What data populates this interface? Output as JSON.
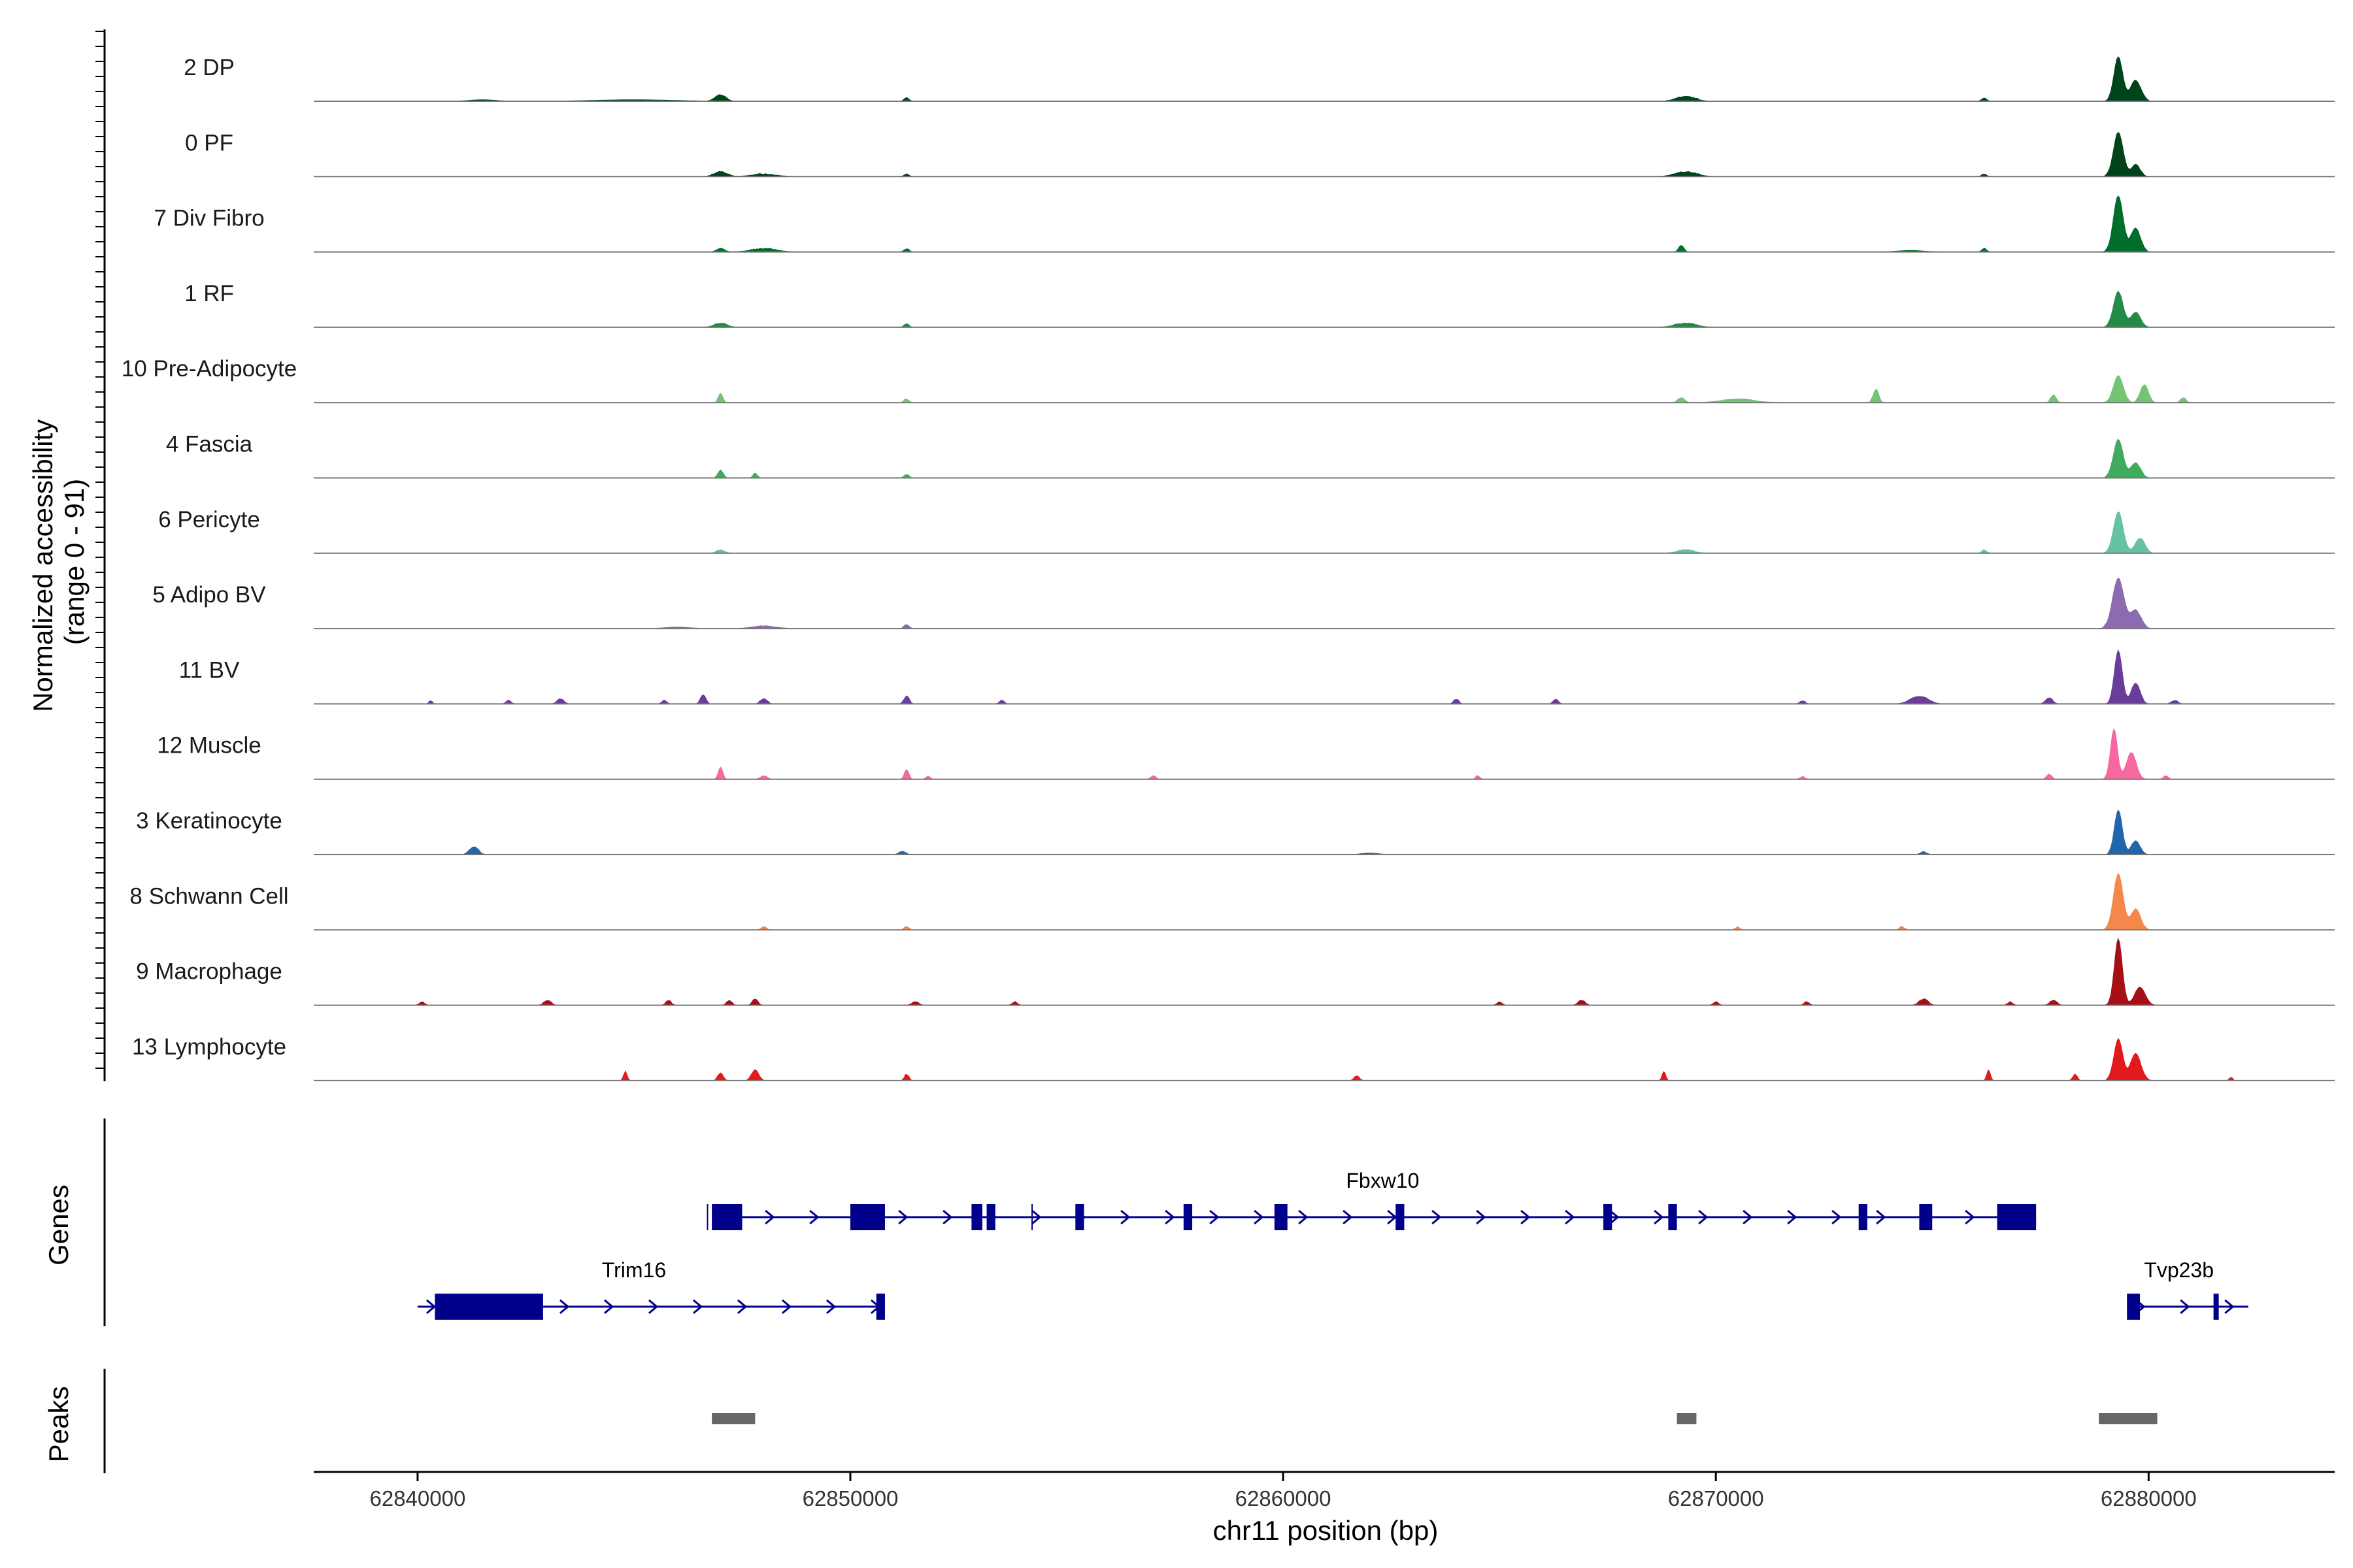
{
  "chart_data": {
    "type": "area",
    "chromosome": "chr11",
    "xlabel": "chr11 position (bp)",
    "ylabel_line1": "Normalized accessibility",
    "ylabel_line2": "(range 0 - 91)",
    "y_range": [
      0,
      91
    ],
    "xlim": [
      62837600,
      62884300
    ],
    "x_ticks": [
      "62840000",
      "62850000",
      "62860000",
      "62870000",
      "62880000"
    ],
    "x_tick_values": [
      62840000,
      62850000,
      62860000,
      62870000,
      62880000
    ],
    "tracks": [
      {
        "name": "2 DP",
        "color": "#00441b",
        "baseline": 1,
        "peaks": [
          [
            62879300,
            30,
            100
          ],
          [
            62879700,
            14,
            120
          ],
          [
            62847000,
            4,
            120
          ],
          [
            62851300,
            2,
            60
          ],
          [
            62869300,
            3,
            220
          ],
          [
            62845000,
            1,
            900
          ],
          [
            62876200,
            2,
            60
          ],
          [
            62841500,
            1,
            300
          ]
        ]
      },
      {
        "name": "0 PF",
        "color": "#00441b",
        "baseline": 1,
        "peaks": [
          [
            62879300,
            30,
            110
          ],
          [
            62879700,
            8,
            100
          ],
          [
            62847000,
            3,
            150
          ],
          [
            62848000,
            1.5,
            300
          ],
          [
            62869300,
            3,
            250
          ],
          [
            62851300,
            1.5,
            60
          ],
          [
            62876200,
            1.5,
            60
          ]
        ]
      },
      {
        "name": "7 Div Fibro",
        "color": "#006d2c",
        "baseline": 1,
        "peaks": [
          [
            62879300,
            38,
            110
          ],
          [
            62879700,
            16,
            110
          ],
          [
            62847000,
            2,
            100
          ],
          [
            62848000,
            2,
            300
          ],
          [
            62869200,
            4,
            60
          ],
          [
            62851300,
            2,
            60
          ],
          [
            62876200,
            2,
            60
          ],
          [
            62874500,
            1,
            300
          ]
        ]
      },
      {
        "name": "1 RF",
        "color": "#238b45",
        "baseline": 1,
        "peaks": [
          [
            62879300,
            24,
            110
          ],
          [
            62879700,
            10,
            110
          ],
          [
            62847000,
            2.5,
            150
          ],
          [
            62869300,
            2.5,
            250
          ],
          [
            62851300,
            2,
            60
          ]
        ]
      },
      {
        "name": "10 Pre-Adipocyte",
        "color": "#74c476",
        "baseline": 1,
        "peaks": [
          [
            62879300,
            18,
            110
          ],
          [
            62879900,
            12,
            90
          ],
          [
            62877800,
            5,
            60
          ],
          [
            62873700,
            9,
            60
          ],
          [
            62847000,
            6,
            50
          ],
          [
            62869200,
            3,
            80
          ],
          [
            62870500,
            2,
            400
          ],
          [
            62851300,
            2,
            60
          ],
          [
            62880800,
            3,
            60
          ]
        ]
      },
      {
        "name": "4 Fascia",
        "color": "#41ab5d",
        "baseline": 1,
        "peaks": [
          [
            62879300,
            26,
            110
          ],
          [
            62879700,
            10,
            110
          ],
          [
            62847000,
            5,
            60
          ],
          [
            62847800,
            3,
            50
          ],
          [
            62851300,
            2,
            60
          ]
        ]
      },
      {
        "name": "6 Pericyte",
        "color": "#66c2a4",
        "baseline": 1,
        "peaks": [
          [
            62879300,
            28,
            110
          ],
          [
            62879800,
            10,
            110
          ],
          [
            62847000,
            2,
            100
          ],
          [
            62869300,
            2,
            200
          ],
          [
            62876200,
            2,
            60
          ]
        ]
      },
      {
        "name": "5 Adipo BV",
        "color": "#8c6bb1",
        "baseline": 1,
        "peaks": [
          [
            62879300,
            34,
            130
          ],
          [
            62879700,
            12,
            120
          ],
          [
            62851300,
            2.5,
            60
          ],
          [
            62848000,
            1.5,
            300
          ],
          [
            62846000,
            1,
            300
          ]
        ]
      },
      {
        "name": "11 BV",
        "color": "#6a3d9a",
        "baseline": 1,
        "peaks": [
          [
            62879300,
            36,
            90
          ],
          [
            62879700,
            14,
            100
          ],
          [
            62846600,
            6,
            60
          ],
          [
            62851300,
            5,
            60
          ],
          [
            62874700,
            5,
            200
          ],
          [
            62877700,
            4,
            80
          ],
          [
            62843300,
            3,
            80
          ],
          [
            62848000,
            3,
            80
          ],
          [
            62864000,
            3,
            60
          ],
          [
            62866300,
            3,
            60
          ],
          [
            62872000,
            2,
            60
          ],
          [
            62880600,
            2,
            80
          ],
          [
            62840300,
            2,
            40
          ],
          [
            62853500,
            2,
            60
          ],
          [
            62842100,
            2,
            60
          ],
          [
            62845700,
            2,
            60
          ]
        ]
      },
      {
        "name": "12 Muscle",
        "color": "#f768a1",
        "baseline": 1,
        "peaks": [
          [
            62879200,
            34,
            80
          ],
          [
            62879600,
            18,
            110
          ],
          [
            62847000,
            8,
            50
          ],
          [
            62851300,
            6,
            50
          ],
          [
            62851800,
            2,
            50
          ],
          [
            62848000,
            2,
            80
          ],
          [
            62864500,
            2,
            50
          ],
          [
            62857000,
            2,
            60
          ],
          [
            62877700,
            3,
            60
          ],
          [
            62872000,
            1.5,
            60
          ],
          [
            62880400,
            2,
            60
          ]
        ]
      },
      {
        "name": "3 Keratinocyte",
        "color": "#2166ac",
        "baseline": 1,
        "peaks": [
          [
            62879300,
            30,
            90
          ],
          [
            62879700,
            9,
            100
          ],
          [
            62841300,
            5,
            100
          ],
          [
            62851200,
            2,
            80
          ],
          [
            62874800,
            1.5,
            80
          ],
          [
            62862000,
            1,
            200
          ]
        ]
      },
      {
        "name": "8 Schwann Cell",
        "color": "#f4874b",
        "baseline": 1,
        "peaks": [
          [
            62879300,
            38,
            110
          ],
          [
            62879700,
            14,
            110
          ],
          [
            62851300,
            2,
            60
          ],
          [
            62848000,
            2,
            60
          ],
          [
            62870500,
            1.5,
            60
          ],
          [
            62874300,
            2,
            60
          ]
        ]
      },
      {
        "name": "9 Macrophage",
        "color": "#a50f15",
        "baseline": 1,
        "peaks": [
          [
            62879300,
            45,
            90
          ],
          [
            62879800,
            12,
            120
          ],
          [
            62847800,
            4,
            60
          ],
          [
            62847200,
            3,
            60
          ],
          [
            62845800,
            3,
            60
          ],
          [
            62843000,
            3,
            80
          ],
          [
            62851500,
            2,
            80
          ],
          [
            62866900,
            3,
            80
          ],
          [
            62874800,
            4,
            100
          ],
          [
            62877800,
            3,
            80
          ],
          [
            62840100,
            2,
            60
          ],
          [
            62865000,
            2,
            60
          ],
          [
            62870000,
            2,
            60
          ],
          [
            62872100,
            2,
            60
          ],
          [
            62853800,
            2,
            60
          ],
          [
            62876800,
            2,
            60
          ]
        ]
      },
      {
        "name": "13 Lymphocyte",
        "color": "#e31a1c",
        "baseline": 1,
        "peaks": [
          [
            62879300,
            28,
            100
          ],
          [
            62879700,
            18,
            120
          ],
          [
            62847800,
            7,
            80
          ],
          [
            62847000,
            5,
            60
          ],
          [
            62851300,
            4,
            50
          ],
          [
            62844800,
            6,
            40
          ],
          [
            62868800,
            6,
            40
          ],
          [
            62876300,
            7,
            40
          ],
          [
            62878300,
            4,
            50
          ],
          [
            62861700,
            3,
            60
          ],
          [
            62881900,
            2,
            40
          ]
        ]
      }
    ],
    "genes": [
      {
        "name": "Fbxw10",
        "start": 62846800,
        "end": 62877400,
        "strand": "+",
        "exons": [
          [
            62846800,
            62847500
          ],
          [
            62850000,
            62850800
          ],
          [
            62852800,
            62853050
          ],
          [
            62853150,
            62853350
          ],
          [
            62855200,
            62855400
          ],
          [
            62857700,
            62857900
          ],
          [
            62859800,
            62860100
          ],
          [
            62862600,
            62862800
          ],
          [
            62867400,
            62867600
          ],
          [
            62868900,
            62869100
          ],
          [
            62873300,
            62873500
          ],
          [
            62874700,
            62875000
          ],
          [
            62876500,
            62877400
          ]
        ],
        "thin": [
          [
            62846700,
            62846800
          ],
          [
            62854200,
            62854250
          ]
        ]
      },
      {
        "name": "Trim16",
        "start": 62840000,
        "end": 62850800,
        "strand": "+",
        "exons": [
          [
            62840400,
            62842900
          ],
          [
            62850600,
            62850800
          ]
        ],
        "thin": []
      },
      {
        "name": "Tvp23b",
        "start": 62879500,
        "end": 62882300,
        "strand": "+",
        "exons": [
          [
            62879500,
            62879800
          ],
          [
            62881500,
            62881580
          ]
        ],
        "thin": []
      }
    ],
    "peak_regions": [
      [
        62846800,
        62847800
      ],
      [
        62869100,
        62869550
      ],
      [
        62878850,
        62880200
      ]
    ],
    "genes_label": "Genes",
    "peaks_label": "Peaks",
    "gene_color": "#00008b",
    "peak_color": "#666666"
  }
}
